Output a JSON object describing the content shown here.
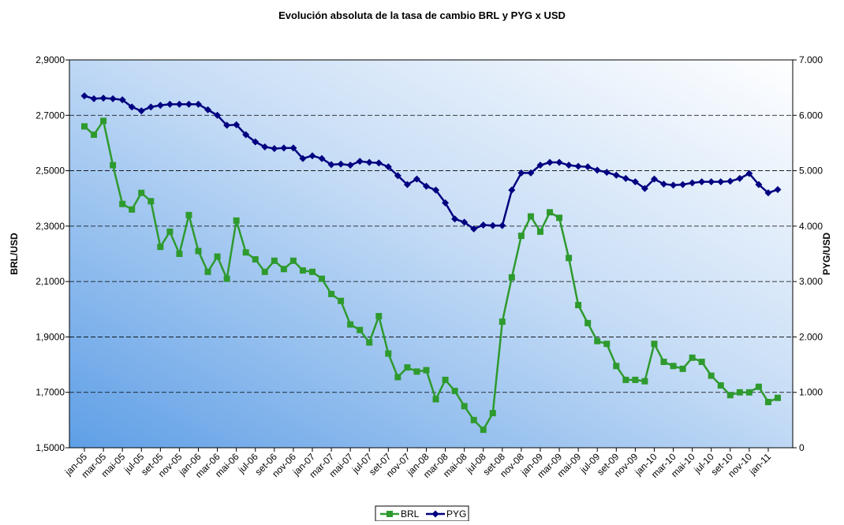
{
  "chart_data": {
    "type": "line",
    "title": "Evolución absoluta de la tasa de cambio BRL y PYG x USD",
    "y_label": "BRL/USD",
    "y2_label": "PYG/USD",
    "categories": [
      "jan-05",
      null,
      "mar-05",
      null,
      "mai-05",
      null,
      "jul-05",
      null,
      "set-05",
      null,
      "nov-05",
      null,
      "jan-06",
      null,
      "mar-06",
      null,
      "mai-06",
      null,
      "jul-06",
      null,
      "set-06",
      null,
      "nov-06",
      null,
      "jan-07",
      null,
      "mar-07",
      null,
      "mai-07",
      null,
      "jul-07",
      null,
      "set-07",
      null,
      "nov-07",
      null,
      "jan-08",
      null,
      "mar-08",
      null,
      "mai-08",
      null,
      "jul-08",
      null,
      "set-08",
      null,
      "nov-08",
      null,
      "jan-09",
      null,
      "mar-09",
      null,
      "mai-09",
      null,
      "jul-09",
      null,
      "set-09",
      null,
      "nov-09",
      null,
      "jan-10",
      null,
      "mar-10",
      null,
      "mai-10",
      null,
      "jul-10",
      null,
      "set-10",
      null,
      "nov-10",
      null,
      "jan-11",
      null
    ],
    "series": [
      {
        "name": "BRL",
        "color": "#2e9a2e",
        "marker": "square",
        "axis": "y",
        "values": [
          2.66,
          2.63,
          2.68,
          2.52,
          2.38,
          2.36,
          2.42,
          2.39,
          2.225,
          2.28,
          2.2,
          2.34,
          2.21,
          2.135,
          2.19,
          2.11,
          2.32,
          2.205,
          2.18,
          2.135,
          2.175,
          2.145,
          2.175,
          2.14,
          2.135,
          2.11,
          2.055,
          2.03,
          1.945,
          1.925,
          1.88,
          1.975,
          1.84,
          1.755,
          1.79,
          1.775,
          1.78,
          1.675,
          1.745,
          1.705,
          1.65,
          1.6,
          1.565,
          1.625,
          1.955,
          2.115,
          2.265,
          2.335,
          2.28,
          2.35,
          2.33,
          2.185,
          2.015,
          1.95,
          1.885,
          1.875,
          1.795,
          1.745,
          1.745,
          1.74,
          1.875,
          1.81,
          1.795,
          1.785,
          1.825,
          1.81,
          1.76,
          1.725,
          1.69,
          1.7,
          1.7,
          1.72,
          1.665,
          1.68
        ]
      },
      {
        "name": "PYG",
        "color": "#000080",
        "marker": "diamond",
        "axis": "y2",
        "values": [
          6350,
          6300,
          6310,
          6300,
          6280,
          6150,
          6080,
          6150,
          6180,
          6200,
          6200,
          6200,
          6200,
          6100,
          6000,
          5820,
          5830,
          5650,
          5520,
          5430,
          5400,
          5410,
          5410,
          5220,
          5270,
          5220,
          5110,
          5120,
          5100,
          5170,
          5150,
          5140,
          5070,
          4910,
          4750,
          4850,
          4720,
          4650,
          4420,
          4130,
          4070,
          3950,
          4020,
          4010,
          4010,
          4650,
          4960,
          4960,
          5100,
          5150,
          5150,
          5100,
          5080,
          5070,
          5010,
          4970,
          4920,
          4860,
          4800,
          4680,
          4850,
          4760,
          4740,
          4750,
          4780,
          4800,
          4800,
          4800,
          4810,
          4860,
          4950,
          4750,
          4600,
          4660
        ]
      }
    ],
    "ylim": [
      1.5,
      2.9
    ],
    "yticks": [
      {
        "value": 1.5,
        "label": "1,5000"
      },
      {
        "value": 1.7,
        "label": "1,7000"
      },
      {
        "value": 1.9,
        "label": "1,9000"
      },
      {
        "value": 2.1,
        "label": "2,1000"
      },
      {
        "value": 2.3,
        "label": "2,3000"
      },
      {
        "value": 2.5,
        "label": "2,5000"
      },
      {
        "value": 2.7,
        "label": "2,7000"
      },
      {
        "value": 2.9,
        "label": "2,9000"
      }
    ],
    "y2lim": [
      0,
      7000
    ],
    "y2ticks": [
      0,
      {
        "value": 1000,
        "label": "1.000"
      },
      {
        "value": 2000,
        "label": "2.000"
      },
      {
        "value": 3000,
        "label": "3.000"
      },
      {
        "value": 4000,
        "label": "4.000"
      },
      {
        "value": 5000,
        "label": "5.000"
      },
      {
        "value": 6000,
        "label": "6.000"
      },
      {
        "value": 7000,
        "label": "7.000"
      }
    ],
    "grid": true,
    "legend": "bottom"
  }
}
